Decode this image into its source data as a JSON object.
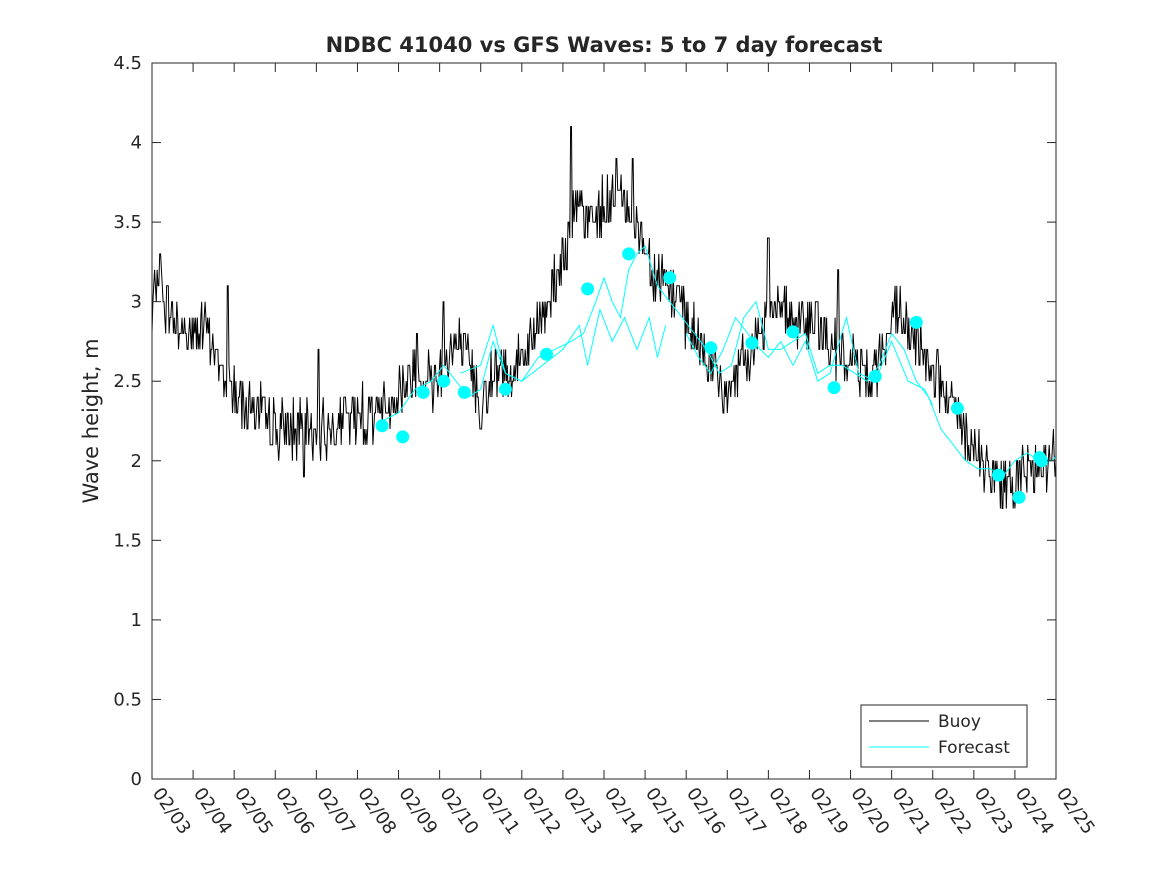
{
  "chart_data": {
    "type": "line",
    "title": "NDBC 41040 vs GFS Waves: 5 to 7 day forecast",
    "xlabel": "",
    "ylabel": "Wave height, m",
    "xlim": [
      0,
      22
    ],
    "ylim": [
      0,
      4.5
    ],
    "x_unit": "days since 02/03",
    "x_ticks": [
      0,
      1,
      2,
      3,
      4,
      5,
      6,
      7,
      8,
      9,
      10,
      11,
      12,
      13,
      14,
      15,
      16,
      17,
      18,
      19,
      20,
      21,
      22
    ],
    "x_tick_labels": [
      "02/03",
      "02/04",
      "02/05",
      "02/06",
      "02/07",
      "02/08",
      "02/09",
      "02/10",
      "02/11",
      "02/12",
      "02/13",
      "02/14",
      "02/15",
      "02/16",
      "02/17",
      "02/18",
      "02/19",
      "02/20",
      "02/21",
      "02/22",
      "02/23",
      "02/24",
      "02/25"
    ],
    "y_ticks": [
      0,
      0.5,
      1,
      1.5,
      2,
      2.5,
      3,
      3.5,
      4,
      4.5
    ],
    "y_tick_labels": [
      "0",
      "0.5",
      "1",
      "1.5",
      "2",
      "2.5",
      "3",
      "3.5",
      "4",
      "4.5"
    ],
    "grid": false,
    "legend": {
      "location": "bottom-right",
      "entries": [
        "Buoy",
        "Forecast"
      ]
    },
    "colors": {
      "buoy": "#000000",
      "forecast": "#00ffff",
      "markers": "#00ffff",
      "axes": "#262626"
    },
    "buoy_envelope": [
      [
        0,
        2.85
      ],
      [
        0.1,
        3.2
      ],
      [
        0.3,
        3.0
      ],
      [
        0.6,
        2.85
      ],
      [
        1.0,
        2.8
      ],
      [
        1.3,
        2.85
      ],
      [
        1.5,
        2.7
      ],
      [
        1.8,
        2.5
      ],
      [
        2.2,
        2.4
      ],
      [
        2.6,
        2.3
      ],
      [
        3.0,
        2.2
      ],
      [
        3.4,
        2.2
      ],
      [
        3.8,
        2.2
      ],
      [
        4.2,
        2.2
      ],
      [
        4.6,
        2.25
      ],
      [
        5.0,
        2.3
      ],
      [
        5.4,
        2.3
      ],
      [
        5.8,
        2.35
      ],
      [
        6.2,
        2.5
      ],
      [
        6.5,
        2.55
      ],
      [
        6.8,
        2.5
      ],
      [
        7.1,
        2.6
      ],
      [
        7.4,
        2.75
      ],
      [
        7.7,
        2.6
      ],
      [
        8.0,
        2.45
      ],
      [
        8.3,
        2.5
      ],
      [
        8.6,
        2.55
      ],
      [
        8.9,
        2.6
      ],
      [
        9.2,
        2.7
      ],
      [
        9.5,
        2.9
      ],
      [
        9.8,
        3.1
      ],
      [
        10.0,
        3.3
      ],
      [
        10.2,
        3.5
      ],
      [
        10.4,
        3.55
      ],
      [
        10.6,
        3.5
      ],
      [
        10.8,
        3.55
      ],
      [
        11.0,
        3.6
      ],
      [
        11.3,
        3.65
      ],
      [
        11.6,
        3.6
      ],
      [
        11.9,
        3.4
      ],
      [
        12.2,
        3.2
      ],
      [
        12.5,
        3.1
      ],
      [
        12.8,
        3.0
      ],
      [
        13.0,
        2.85
      ],
      [
        13.3,
        2.75
      ],
      [
        13.6,
        2.6
      ],
      [
        13.9,
        2.45
      ],
      [
        14.2,
        2.5
      ],
      [
        14.5,
        2.65
      ],
      [
        14.8,
        2.8
      ],
      [
        15.0,
        2.95
      ],
      [
        15.3,
        3.05
      ],
      [
        15.5,
        2.9
      ],
      [
        15.8,
        2.85
      ],
      [
        16.1,
        2.9
      ],
      [
        16.4,
        2.75
      ],
      [
        16.7,
        2.65
      ],
      [
        17.0,
        2.6
      ],
      [
        17.3,
        2.6
      ],
      [
        17.6,
        2.6
      ],
      [
        17.9,
        2.75
      ],
      [
        18.1,
        2.95
      ],
      [
        18.3,
        2.85
      ],
      [
        18.6,
        2.75
      ],
      [
        18.9,
        2.65
      ],
      [
        19.2,
        2.45
      ],
      [
        19.5,
        2.3
      ],
      [
        19.8,
        2.15
      ],
      [
        20.1,
        2.0
      ],
      [
        20.4,
        1.9
      ],
      [
        20.7,
        1.9
      ],
      [
        21.0,
        1.9
      ],
      [
        21.3,
        1.95
      ],
      [
        21.6,
        2.0
      ],
      [
        22.0,
        2.0
      ]
    ],
    "buoy_spikes": [
      {
        "x": 0.2,
        "y": 3.3
      },
      {
        "x": 1.85,
        "y": 3.1
      },
      {
        "x": 3.7,
        "y": 1.9
      },
      {
        "x": 4.05,
        "y": 2.7
      },
      {
        "x": 6.45,
        "y": 2.8
      },
      {
        "x": 7.1,
        "y": 3.0
      },
      {
        "x": 8.0,
        "y": 2.2
      },
      {
        "x": 10.2,
        "y": 4.1
      },
      {
        "x": 11.3,
        "y": 3.9
      },
      {
        "x": 11.7,
        "y": 3.9
      },
      {
        "x": 13.9,
        "y": 2.3
      },
      {
        "x": 15.0,
        "y": 3.4
      },
      {
        "x": 16.7,
        "y": 3.2
      },
      {
        "x": 20.7,
        "y": 1.7
      }
    ],
    "series": [
      {
        "name": "Forecast",
        "segments": [
          [
            [
              5.6,
              2.25
            ],
            [
              6.0,
              2.3
            ],
            [
              6.4,
              2.45
            ],
            [
              6.8,
              2.5
            ],
            [
              7.1,
              2.6
            ],
            [
              7.4,
              2.5
            ],
            [
              7.7,
              2.4
            ],
            [
              8.0,
              2.45
            ],
            [
              8.3,
              2.75
            ],
            [
              8.6,
              2.55
            ],
            [
              9.0,
              2.5
            ],
            [
              9.4,
              2.65
            ],
            [
              9.8,
              2.7
            ],
            [
              10.2,
              2.75
            ],
            [
              10.5,
              2.8
            ],
            [
              10.8,
              3.0
            ],
            [
              11.0,
              3.15
            ],
            [
              11.2,
              3.0
            ],
            [
              11.4,
              2.9
            ],
            [
              11.6,
              3.2
            ],
            [
              11.8,
              3.3
            ],
            [
              12.0,
              3.35
            ],
            [
              12.3,
              3.1
            ],
            [
              12.6,
              3.0
            ],
            [
              12.9,
              2.9
            ],
            [
              13.2,
              2.8
            ],
            [
              13.5,
              2.7
            ],
            [
              13.8,
              2.55
            ],
            [
              14.1,
              2.6
            ],
            [
              14.4,
              2.9
            ],
            [
              14.7,
              3.0
            ],
            [
              15.0,
              2.7
            ],
            [
              15.3,
              2.7
            ],
            [
              15.6,
              2.75
            ],
            [
              15.9,
              2.8
            ],
            [
              16.2,
              2.55
            ],
            [
              16.5,
              2.6
            ],
            [
              16.8,
              2.6
            ],
            [
              17.1,
              2.55
            ],
            [
              17.4,
              2.5
            ],
            [
              17.7,
              2.6
            ],
            [
              18.0,
              2.8
            ],
            [
              18.3,
              2.7
            ],
            [
              18.6,
              2.5
            ],
            [
              18.9,
              2.4
            ],
            [
              19.2,
              2.2
            ],
            [
              19.5,
              2.1
            ],
            [
              19.8,
              2.0
            ],
            [
              20.1,
              1.95
            ],
            [
              20.4,
              1.95
            ],
            [
              20.7,
              1.9
            ],
            [
              21.0,
              2.0
            ],
            [
              21.3,
              2.05
            ],
            [
              21.6,
              2.0
            ],
            [
              21.9,
              2.0
            ],
            [
              22.0,
              2.03
            ]
          ],
          [
            [
              7.5,
              2.55
            ],
            [
              8.0,
              2.6
            ],
            [
              8.3,
              2.85
            ],
            [
              8.6,
              2.55
            ],
            [
              9.0,
              2.5
            ],
            [
              9.5,
              2.6
            ],
            [
              10.0,
              2.7
            ],
            [
              10.4,
              2.85
            ],
            [
              10.6,
              2.6
            ],
            [
              10.9,
              2.95
            ],
            [
              11.2,
              2.75
            ],
            [
              11.5,
              2.9
            ],
            [
              11.8,
              2.7
            ],
            [
              12.1,
              2.9
            ],
            [
              12.3,
              2.65
            ],
            [
              12.5,
              2.85
            ]
          ],
          [
            [
              13.0,
              2.8
            ],
            [
              13.3,
              2.65
            ],
            [
              13.6,
              2.55
            ],
            [
              13.9,
              2.7
            ],
            [
              14.2,
              2.9
            ],
            [
              14.5,
              2.8
            ],
            [
              14.8,
              2.7
            ],
            [
              15.0,
              2.65
            ],
            [
              15.3,
              2.75
            ],
            [
              15.6,
              2.6
            ],
            [
              15.9,
              2.75
            ],
            [
              16.2,
              2.5
            ],
            [
              16.5,
              2.55
            ],
            [
              16.9,
              2.9
            ],
            [
              17.2,
              2.55
            ],
            [
              17.6,
              2.5
            ],
            [
              18.0,
              2.75
            ],
            [
              18.4,
              2.5
            ],
            [
              18.8,
              2.45
            ],
            [
              19.0,
              2.35
            ]
          ]
        ]
      }
    ],
    "markers": [
      {
        "x": 5.6,
        "y": 2.22
      },
      {
        "x": 6.1,
        "y": 2.15
      },
      {
        "x": 6.6,
        "y": 2.43
      },
      {
        "x": 7.1,
        "y": 2.5
      },
      {
        "x": 7.6,
        "y": 2.43
      },
      {
        "x": 8.6,
        "y": 2.45
      },
      {
        "x": 9.6,
        "y": 2.67
      },
      {
        "x": 10.6,
        "y": 3.08
      },
      {
        "x": 11.6,
        "y": 3.3
      },
      {
        "x": 12.6,
        "y": 3.15
      },
      {
        "x": 13.6,
        "y": 2.71
      },
      {
        "x": 14.6,
        "y": 2.74
      },
      {
        "x": 15.6,
        "y": 2.81
      },
      {
        "x": 16.6,
        "y": 2.46
      },
      {
        "x": 17.6,
        "y": 2.53
      },
      {
        "x": 18.6,
        "y": 2.87
      },
      {
        "x": 19.6,
        "y": 2.33
      },
      {
        "x": 20.6,
        "y": 1.91
      },
      {
        "x": 21.1,
        "y": 1.77
      },
      {
        "x": 21.6,
        "y": 2.02
      },
      {
        "x": 21.65,
        "y": 2.0
      }
    ]
  }
}
